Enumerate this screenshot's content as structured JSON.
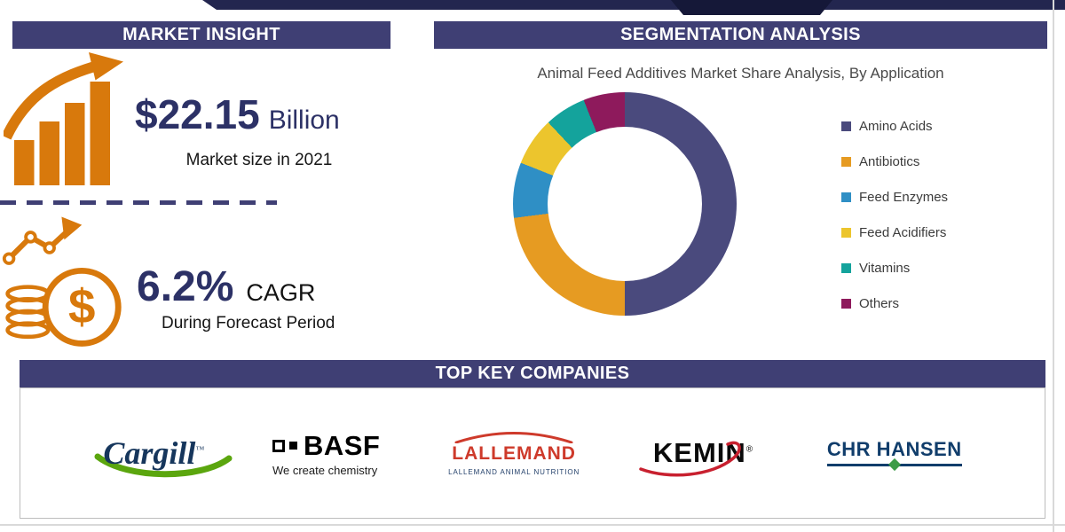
{
  "market_insight": {
    "title": "MARKET INSIGHT",
    "market_size": {
      "value": "$22.15",
      "unit": "Billion",
      "caption": "Market size in 2021"
    },
    "cagr": {
      "value": "6.2%",
      "label": "CAGR",
      "caption": "During Forecast Period"
    }
  },
  "segmentation": {
    "title": "SEGMENTATION ANALYSIS"
  },
  "chart_data": {
    "type": "pie",
    "donut": true,
    "title": "Animal Feed Additives Market Share Analysis, By Application",
    "legend_position": "right",
    "segments": [
      {
        "label": "Amino Acids",
        "value": 50,
        "color": "#4A4A7D"
      },
      {
        "label": "Antibiotics",
        "value": 23,
        "color": "#E69B22"
      },
      {
        "label": "Feed Enzymes",
        "value": 8,
        "color": "#2F8FC5"
      },
      {
        "label": "Feed Acidifiers",
        "value": 7,
        "color": "#ECC52D"
      },
      {
        "label": "Vitamins",
        "value": 6,
        "color": "#14A39C"
      },
      {
        "label": "Others",
        "value": 6,
        "color": "#8E1A5C"
      }
    ]
  },
  "companies": {
    "title": "TOP KEY COMPANIES",
    "logos": [
      {
        "id": "cargill",
        "name": "Cargill",
        "trademark": "™"
      },
      {
        "id": "basf",
        "name": "BASF",
        "tagline": "We create chemistry"
      },
      {
        "id": "lallemand",
        "name": "LALLEMAND",
        "tagline": "LALLEMAND ANIMAL NUTRITION"
      },
      {
        "id": "kemin",
        "name": "KEMIN",
        "trademark": "®"
      },
      {
        "id": "chr-hansen",
        "name": "CHR HANSEN"
      }
    ]
  },
  "colors": {
    "banner": "#3F3F74",
    "accent_orange": "#D8790C",
    "headline": "#2C3166"
  }
}
